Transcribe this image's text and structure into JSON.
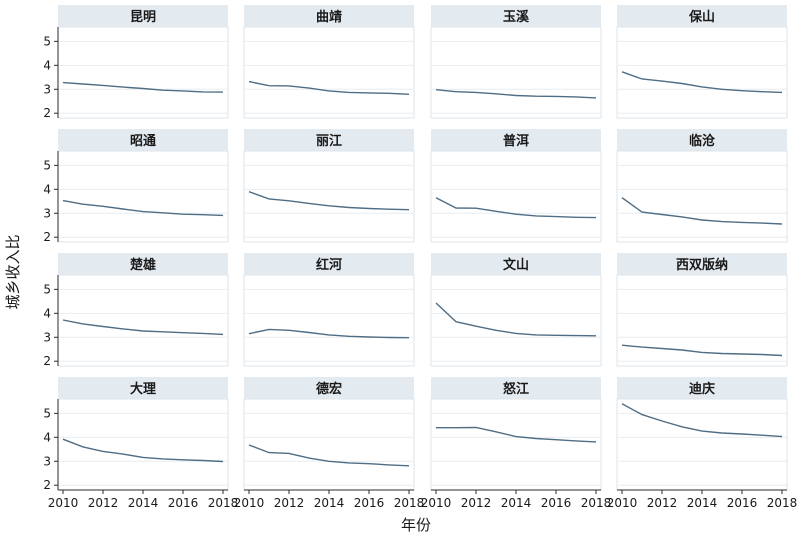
{
  "chart_data": {
    "type": "line",
    "layout": "facet-grid 4x4",
    "xlabel": "年份",
    "ylabel": "城乡收入比",
    "x": [
      2010,
      2011,
      2012,
      2013,
      2014,
      2015,
      2016,
      2017,
      2018
    ],
    "xticks": [
      2010,
      2012,
      2014,
      2016,
      2018
    ],
    "ylim": [
      1.8,
      5.6
    ],
    "yticks": [
      2,
      3,
      4,
      5
    ],
    "line_color": "#4f6d84",
    "strip_color": "#e4ebf0",
    "panels": [
      {
        "name": "昆明",
        "values": [
          3.28,
          3.22,
          3.16,
          3.09,
          3.03,
          2.96,
          2.93,
          2.89,
          2.88
        ]
      },
      {
        "name": "曲靖",
        "values": [
          3.32,
          3.15,
          3.14,
          3.05,
          2.93,
          2.87,
          2.85,
          2.83,
          2.79
        ]
      },
      {
        "name": "玉溪",
        "values": [
          2.98,
          2.9,
          2.87,
          2.81,
          2.74,
          2.71,
          2.7,
          2.68,
          2.64
        ]
      },
      {
        "name": "保山",
        "values": [
          3.73,
          3.43,
          3.34,
          3.24,
          3.1,
          3.0,
          2.94,
          2.9,
          2.87
        ]
      },
      {
        "name": "昭通",
        "values": [
          3.53,
          3.38,
          3.29,
          3.18,
          3.07,
          3.02,
          2.96,
          2.94,
          2.91
        ]
      },
      {
        "name": "丽江",
        "values": [
          3.9,
          3.6,
          3.52,
          3.41,
          3.31,
          3.24,
          3.2,
          3.17,
          3.15
        ]
      },
      {
        "name": "普洱",
        "values": [
          3.65,
          3.22,
          3.21,
          3.08,
          2.96,
          2.89,
          2.86,
          2.83,
          2.82
        ]
      },
      {
        "name": "临沧",
        "values": [
          3.65,
          3.05,
          2.95,
          2.85,
          2.72,
          2.65,
          2.62,
          2.59,
          2.55
        ]
      },
      {
        "name": "楚雄",
        "values": [
          3.72,
          3.56,
          3.45,
          3.35,
          3.26,
          3.23,
          3.19,
          3.16,
          3.12
        ]
      },
      {
        "name": "红河",
        "values": [
          3.15,
          3.33,
          3.29,
          3.2,
          3.1,
          3.04,
          3.01,
          2.99,
          2.98
        ]
      },
      {
        "name": "文山",
        "values": [
          4.43,
          3.65,
          3.46,
          3.29,
          3.16,
          3.1,
          3.08,
          3.07,
          3.06
        ]
      },
      {
        "name": "西双版纳",
        "values": [
          2.67,
          2.59,
          2.53,
          2.47,
          2.37,
          2.32,
          2.3,
          2.28,
          2.24
        ]
      },
      {
        "name": "大理",
        "values": [
          3.92,
          3.6,
          3.41,
          3.3,
          3.16,
          3.1,
          3.06,
          3.03,
          2.99
        ]
      },
      {
        "name": "德宏",
        "values": [
          3.68,
          3.36,
          3.33,
          3.13,
          3.0,
          2.93,
          2.9,
          2.85,
          2.81
        ]
      },
      {
        "name": "怒江",
        "values": [
          4.4,
          4.4,
          4.41,
          4.23,
          4.03,
          3.95,
          3.9,
          3.85,
          3.81
        ]
      },
      {
        "name": "迪庆",
        "values": [
          5.4,
          4.95,
          4.68,
          4.44,
          4.26,
          4.18,
          4.14,
          4.09,
          4.03
        ]
      }
    ]
  }
}
